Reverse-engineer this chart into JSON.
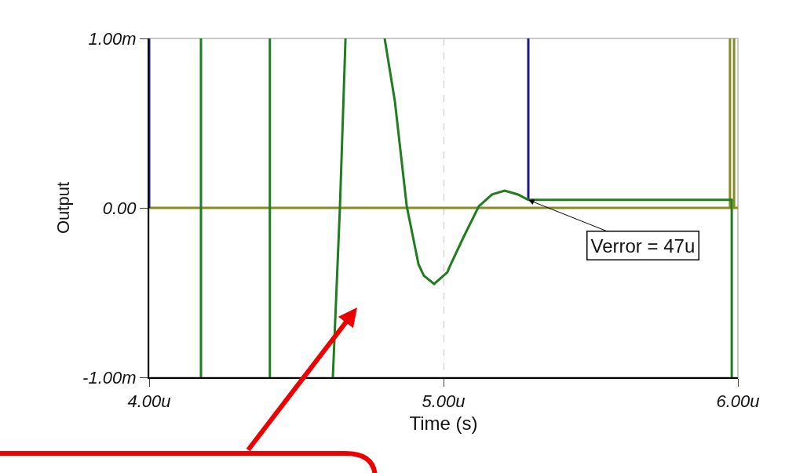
{
  "chart_data": {
    "type": "line",
    "xlabel": "Time (s)",
    "ylabel": "Output",
    "xlim": [
      4.0,
      6.0
    ],
    "xticks": [
      {
        "value": 4.0,
        "label": "4.00u"
      },
      {
        "value": 5.0,
        "label": "5.00u"
      },
      {
        "value": 6.0,
        "label": "6.00u"
      }
    ],
    "ylim": [
      -1.0,
      1.0
    ],
    "yticks": [
      {
        "value": -1.0,
        "label": "-1.00m"
      },
      {
        "value": 0.0,
        "label": "0.00"
      },
      {
        "value": 1.0,
        "label": "1.00m"
      }
    ],
    "grid": "x",
    "marker": "none",
    "line_style": "solid",
    "series": [
      {
        "color": "#8a8a1e",
        "x": [
          4.0,
          5.973,
          5.973,
          null,
          5.987,
          5.987,
          6.0
        ],
        "values": [
          0,
          0,
          1.0,
          null,
          1.0,
          0,
          0
        ]
      },
      {
        "color": "#1a1a8c",
        "x": [
          4.0,
          4.0,
          null,
          5.288,
          5.288
        ],
        "values": [
          1.0,
          0,
          null,
          0.047,
          1.0
        ]
      },
      {
        "color": "#1e7d1e",
        "x": [
          4.176,
          4.176,
          null,
          4.41,
          4.41,
          null,
          4.624,
          4.648,
          4.667,
          null,
          4.8,
          4.835,
          4.875,
          4.915,
          4.933,
          4.968,
          5.013,
          5.021,
          5.067,
          5.12,
          5.165,
          5.208,
          5.253,
          5.288,
          5.979,
          5.979
        ],
        "values": [
          -1.0,
          1.0,
          null,
          1.0,
          -1.0,
          null,
          -1.0,
          0.0,
          1.0,
          null,
          1.0,
          0.625,
          0.01,
          -0.333,
          -0.4,
          -0.449,
          -0.38,
          -0.347,
          -0.176,
          0.01,
          0.079,
          0.102,
          0.079,
          0.047,
          0.047,
          -1.0
        ]
      }
    ],
    "annotations": [
      {
        "text": "Verror = 47u",
        "x": 5.288,
        "y": 0.047
      }
    ]
  }
}
